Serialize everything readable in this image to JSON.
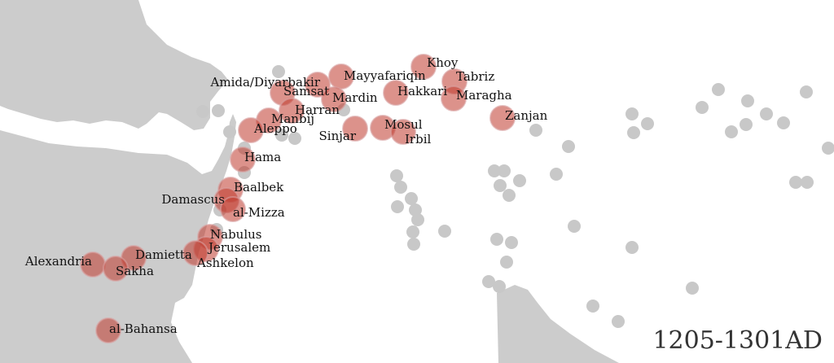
{
  "period": "1205-1301AD",
  "colors": {
    "land": "#cccccc",
    "grey_site": "#c8c8c8",
    "active_site": "#c0392b"
  },
  "active_sites": [
    {
      "name": "Khoy"
    },
    {
      "name": "Tabriz"
    },
    {
      "name": "Mayyafariqin"
    },
    {
      "name": "Amida/Diyarbakir"
    },
    {
      "name": "Samsat"
    },
    {
      "name": "Hakkari"
    },
    {
      "name": "Maragha"
    },
    {
      "name": "Mardin"
    },
    {
      "name": "Harran"
    },
    {
      "name": "Manbij"
    },
    {
      "name": "Aleppo"
    },
    {
      "name": "Mosul"
    },
    {
      "name": "Sinjar"
    },
    {
      "name": "Irbil"
    },
    {
      "name": "Zanjan"
    },
    {
      "name": "Hama"
    },
    {
      "name": "Baalbek"
    },
    {
      "name": "Damascus"
    },
    {
      "name": "al-Mizza"
    },
    {
      "name": "Nabulus"
    },
    {
      "name": "Jerusalem"
    },
    {
      "name": "Ashkelon"
    },
    {
      "name": "Damietta"
    },
    {
      "name": "Alexandria"
    },
    {
      "name": "Sakha"
    },
    {
      "name": "al-Bahansa"
    }
  ]
}
